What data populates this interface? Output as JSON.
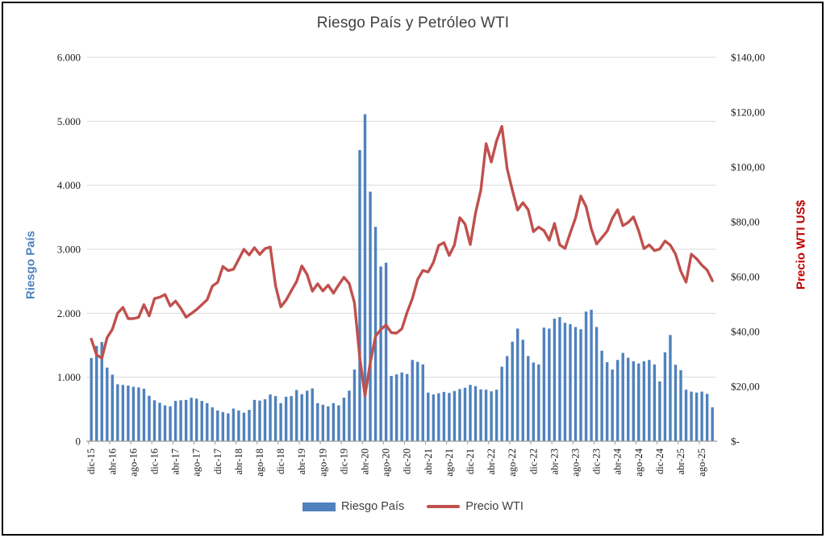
{
  "title": "Riesgo País y Petróleo WTI",
  "legend": {
    "items": [
      {
        "label": "Riesgo País",
        "swatch": "bar-swatch",
        "color": "#4F81BD"
      },
      {
        "label": "Precio WTI",
        "swatch": "line-swatch",
        "color": "#C0504D"
      }
    ]
  },
  "chart_data": {
    "type": "bar+line combo",
    "title": "Riesgo País y Petróleo WTI",
    "grid": "horizontal gridlines on",
    "legend_position": "bottom center",
    "categories": [
      "dic-15",
      "ene-16",
      "feb-16",
      "mar-16",
      "abr-16",
      "may-16",
      "jun-16",
      "jul-16",
      "ago-16",
      "sep-16",
      "oct-16",
      "nov-16",
      "dic-16",
      "ene-17",
      "feb-17",
      "mar-17",
      "abr-17",
      "may-17",
      "jun-17",
      "jul-17",
      "ago-17",
      "sep-17",
      "oct-17",
      "nov-17",
      "dic-17",
      "ene-18",
      "feb-18",
      "mar-18",
      "abr-18",
      "may-18",
      "jun-18",
      "jul-18",
      "ago-18",
      "sep-18",
      "oct-18",
      "nov-18",
      "dic-18",
      "ene-19",
      "feb-19",
      "mar-19",
      "abr-19",
      "may-19",
      "jun-19",
      "jul-19",
      "ago-19",
      "sep-19",
      "oct-19",
      "nov-19",
      "dic-19",
      "ene-20",
      "feb-20",
      "mar-20",
      "abr-20",
      "may-20",
      "jun-20",
      "jul-20",
      "ago-20",
      "sep-20",
      "oct-20",
      "nov-20",
      "dic-20",
      "ene-21",
      "feb-21",
      "mar-21",
      "abr-21",
      "may-21",
      "jun-21",
      "jul-21",
      "ago-21",
      "sep-21",
      "oct-21",
      "nov-21",
      "dic-21",
      "ene-22",
      "feb-22",
      "mar-22",
      "abr-22",
      "may-22",
      "jun-22",
      "jul-22",
      "ago-22",
      "sep-22",
      "oct-22",
      "nov-22",
      "dic-22",
      "ene-23",
      "feb-23",
      "mar-23",
      "abr-23",
      "may-23",
      "jun-23",
      "jul-23",
      "ago-23",
      "sep-23",
      "oct-23",
      "nov-23",
      "dic-23",
      "ene-24",
      "feb-24",
      "mar-24",
      "abr-24",
      "may-24",
      "jun-24",
      "jul-24",
      "ago-24",
      "sep-24",
      "oct-24",
      "nov-24",
      "dic-24",
      "ene-25",
      "feb-25",
      "mar-25",
      "abr-25",
      "may-25",
      "jun-25",
      "jul-25",
      "ago-25",
      "sep-25",
      "oct-25"
    ],
    "series": [
      {
        "name": "Riesgo País",
        "type": "bar",
        "axis": "left",
        "color": "#4F81BD",
        "values": [
          1300,
          1490,
          1550,
          1150,
          1040,
          890,
          880,
          870,
          850,
          840,
          820,
          710,
          640,
          600,
          560,
          545,
          630,
          640,
          645,
          680,
          665,
          630,
          595,
          530,
          480,
          455,
          435,
          510,
          480,
          445,
          490,
          645,
          635,
          655,
          730,
          705,
          595,
          695,
          705,
          800,
          735,
          790,
          825,
          595,
          570,
          545,
          595,
          560,
          680,
          790,
          1120,
          4550,
          5110,
          3900,
          3350,
          2730,
          2790,
          1020,
          1045,
          1075,
          1050,
          1270,
          1240,
          1200,
          760,
          730,
          750,
          770,
          755,
          785,
          815,
          835,
          880,
          860,
          810,
          805,
          780,
          805,
          1165,
          1330,
          1555,
          1760,
          1585,
          1330,
          1230,
          1200,
          1775,
          1760,
          1915,
          1940,
          1850,
          1830,
          1785,
          1750,
          2025,
          2055,
          1785,
          1415,
          1235,
          1120,
          1270,
          1380,
          1305,
          1250,
          1215,
          1250,
          1270,
          1200,
          935,
          1390,
          1660,
          1195,
          1110,
          805,
          775,
          760,
          775,
          740,
          530
        ]
      },
      {
        "name": "Precio WTI",
        "type": "line",
        "axis": "right",
        "color": "#C0504D",
        "values": [
          37.2,
          31.5,
          30.3,
          37.8,
          40.8,
          46.7,
          48.8,
          44.7,
          44.7,
          45.2,
          49.8,
          45.7,
          52.0,
          52.5,
          53.5,
          49.3,
          51.1,
          48.5,
          45.2,
          46.6,
          48.0,
          49.8,
          51.6,
          56.6,
          57.9,
          63.7,
          62.2,
          62.7,
          66.3,
          70.0,
          67.9,
          70.6,
          68.1,
          70.2,
          70.8,
          56.7,
          49.0,
          51.4,
          54.9,
          58.2,
          63.9,
          60.8,
          54.7,
          57.4,
          54.8,
          56.9,
          54.0,
          57.0,
          59.8,
          57.5,
          50.5,
          30.5,
          16.6,
          28.6,
          38.3,
          40.7,
          42.4,
          39.6,
          39.4,
          41.0,
          47.0,
          52.0,
          59.0,
          62.3,
          61.7,
          65.2,
          71.4,
          72.4,
          67.7,
          71.6,
          81.5,
          79.2,
          71.7,
          83.2,
          91.6,
          108.5,
          101.8,
          109.5,
          114.8,
          99.4,
          91.5,
          84.3,
          87.0,
          84.4,
          76.4,
          78.1,
          76.8,
          73.3,
          79.4,
          71.6,
          70.3,
          76.0,
          81.4,
          89.4,
          85.5,
          77.4,
          71.9,
          74.2,
          76.6,
          81.3,
          84.4,
          78.6,
          79.8,
          81.8,
          76.7,
          70.2,
          71.6,
          69.5,
          70.1,
          73.0,
          71.5,
          68.2,
          62.0,
          58.0,
          68.2,
          66.5,
          64.2,
          62.4,
          58.5
        ]
      }
    ],
    "left_axis": {
      "title": "Riesgo País",
      "title_color": "#4F81BD",
      "min": 0,
      "max": 6000,
      "step": 1000,
      "tick_labels": [
        "0",
        "1.000",
        "2.000",
        "3.000",
        "4.000",
        "5.000",
        "6.000"
      ]
    },
    "right_axis": {
      "title": "Precio WTI US$",
      "title_color": "#C00000",
      "min": 0,
      "max": 140,
      "step": 20,
      "tick_labels": [
        "$-",
        "$20,00",
        "$40,00",
        "$60,00",
        "$80,00",
        "$100,00",
        "$120,00",
        "$140,00"
      ]
    },
    "x_axis": {
      "label_every_n_months": 4,
      "tick_labels": [
        "dic-15",
        "abr-16",
        "ago-16",
        "dic-16",
        "abr-17",
        "ago-17",
        "dic-17",
        "abr-18",
        "ago-18",
        "dic-18",
        "abr-19",
        "ago-19",
        "dic-19",
        "abr-20",
        "ago-20",
        "dic-20",
        "abr-21",
        "ago-21",
        "dic-21",
        "abr-22",
        "ago-22",
        "dic-22",
        "abr-23",
        "ago-23",
        "dic-23",
        "abr-24",
        "ago-24",
        "dic-24",
        "abr-25",
        "ago-25"
      ]
    },
    "colors": {
      "bar": "#4F81BD",
      "line": "#C0504D",
      "gridline": "#D9D9D9",
      "axis_line": "#9a9a9a",
      "tick_text": "#1a1a1a",
      "title_text": "#3f3f3f"
    }
  }
}
